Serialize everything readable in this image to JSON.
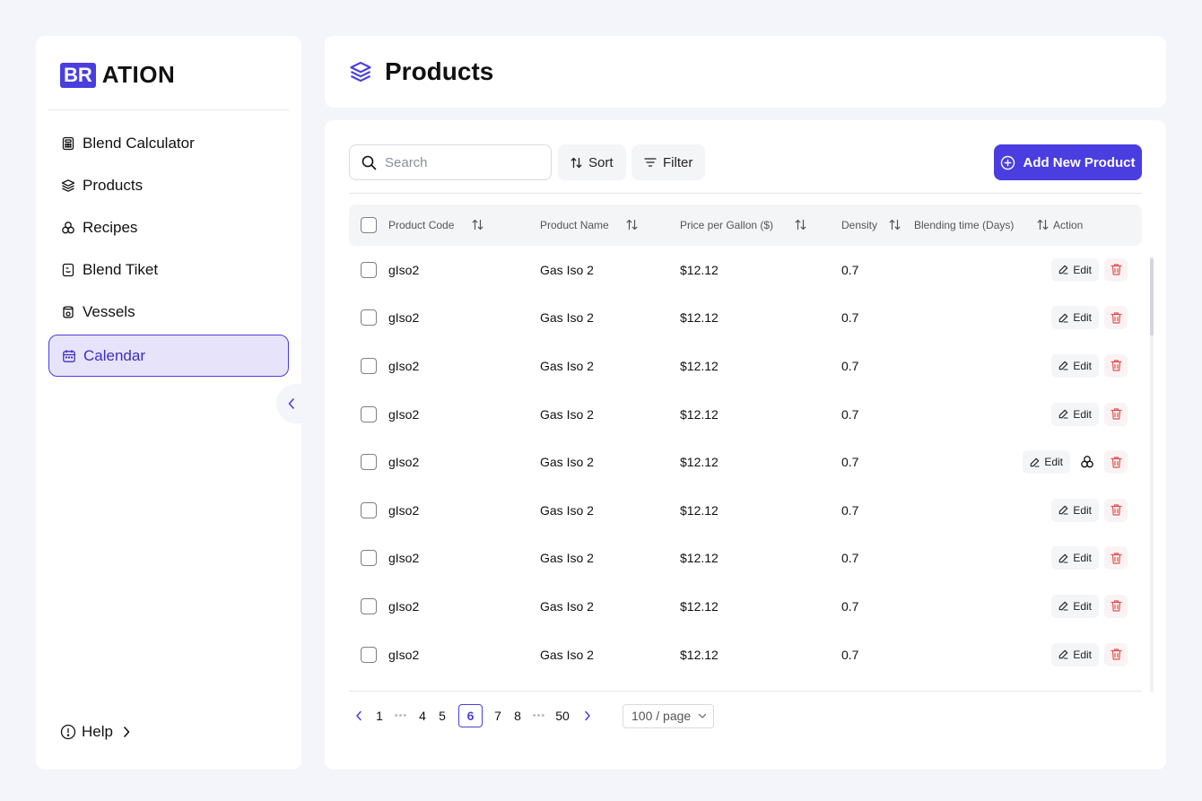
{
  "brand": {
    "box": "BR",
    "text": "ATION",
    "color": "#4a3ee0"
  },
  "sidebar": {
    "items": [
      {
        "label": "Blend Calculator",
        "icon": "calculator-icon"
      },
      {
        "label": "Products",
        "icon": "layers-icon"
      },
      {
        "label": "Recipes",
        "icon": "recipes-icon"
      },
      {
        "label": "Blend Tiket",
        "icon": "ticket-icon"
      },
      {
        "label": "Vessels",
        "icon": "vessel-icon"
      },
      {
        "label": "Calendar",
        "icon": "calendar-icon",
        "active": true
      }
    ],
    "help_label": "Help"
  },
  "header": {
    "title": "Products"
  },
  "toolbar": {
    "search_placeholder": "Search",
    "sort_label": "Sort",
    "filter_label": "Filter",
    "add_label": "Add New Product"
  },
  "table": {
    "columns": [
      "Product Code",
      "Product Name",
      "Price per Gallon ($)",
      "Density",
      "Blending time (Days)",
      "Action"
    ],
    "edit_label": "Edit",
    "rows": [
      {
        "code": "gIso2",
        "name": "Gas Iso 2",
        "price": "$12.12",
        "density": "0.7",
        "recipe": false
      },
      {
        "code": "gIso2",
        "name": "Gas Iso 2",
        "price": "$12.12",
        "density": "0.7",
        "recipe": false
      },
      {
        "code": "gIso2",
        "name": "Gas Iso 2",
        "price": "$12.12",
        "density": "0.7",
        "recipe": false
      },
      {
        "code": "gIso2",
        "name": "Gas Iso 2",
        "price": "$12.12",
        "density": "0.7",
        "recipe": false
      },
      {
        "code": "gIso2",
        "name": "Gas Iso 2",
        "price": "$12.12",
        "density": "0.7",
        "recipe": true
      },
      {
        "code": "gIso2",
        "name": "Gas Iso 2",
        "price": "$12.12",
        "density": "0.7",
        "recipe": false
      },
      {
        "code": "gIso2",
        "name": "Gas Iso 2",
        "price": "$12.12",
        "density": "0.7",
        "recipe": false
      },
      {
        "code": "gIso2",
        "name": "Gas Iso 2",
        "price": "$12.12",
        "density": "0.7",
        "recipe": false
      },
      {
        "code": "gIso2",
        "name": "Gas Iso 2",
        "price": "$12.12",
        "density": "0.7",
        "recipe": false
      }
    ]
  },
  "pagination": {
    "pages": [
      "1",
      "4",
      "5",
      "6",
      "7",
      "8",
      "50"
    ],
    "current": "6",
    "ellipsis": "•••",
    "page_size": "100 / page"
  },
  "colors": {
    "accent": "#4a3ee0",
    "danger": "#e05252"
  }
}
